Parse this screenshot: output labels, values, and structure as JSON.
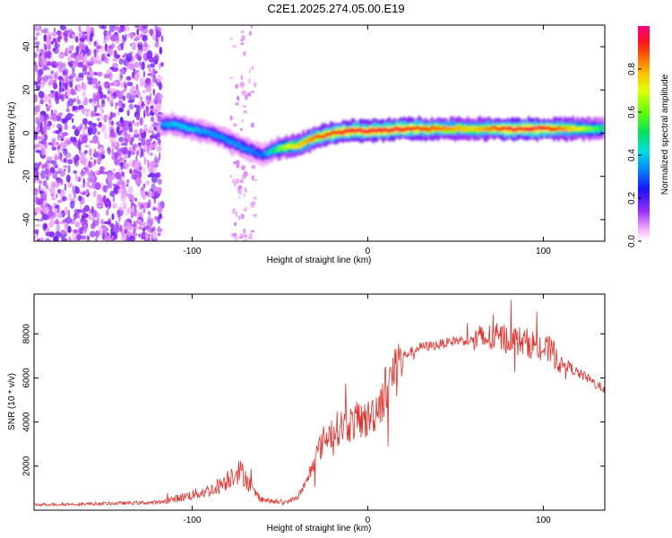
{
  "title": "C2E1.2025.274.05.00.E19",
  "chart_data": [
    {
      "type": "heatmap",
      "name": "spectrogram",
      "xlabel": "Height of straight line (km)",
      "ylabel": "Frequency (Hz)",
      "xlim": [
        -190,
        135
      ],
      "ylim": [
        -50,
        50
      ],
      "xticks": [
        -100,
        0,
        100
      ],
      "yticks": [
        -40,
        -20,
        0,
        20,
        40
      ],
      "colorbar": {
        "label": "Normalized spectral amplitude",
        "range": [
          0,
          1
        ],
        "ticks": [
          "0.0",
          "0.2",
          "0.4",
          "0.6",
          "0.8"
        ]
      },
      "ridge_x": [
        -117,
        -110,
        -100,
        -90,
        -80,
        -70,
        -60,
        -50,
        -45,
        -40,
        -30,
        -20,
        -10,
        0,
        20,
        40,
        60,
        80,
        100,
        110,
        135
      ],
      "ridge_freq": [
        4,
        4,
        2,
        0,
        -3,
        -7,
        -10,
        -7,
        -6,
        -6,
        -2,
        0,
        1,
        1,
        2,
        2,
        2,
        2,
        2,
        2,
        2
      ],
      "ridge_amplitude": [
        0.35,
        0.4,
        0.4,
        0.35,
        0.35,
        0.35,
        0.3,
        0.6,
        0.7,
        0.75,
        0.85,
        0.9,
        0.95,
        0.95,
        0.95,
        0.85,
        0.75,
        0.95,
        0.95,
        0.85,
        0.5
      ],
      "noise_region_x": [
        -190,
        -117
      ]
    },
    {
      "type": "line",
      "name": "snr",
      "xlabel": "Height of straight line (km)",
      "ylabel": "SNR (10 * v/v)",
      "xlim": [
        -190,
        135
      ],
      "ylim": [
        0,
        9800
      ],
      "xticks": [
        -100,
        0,
        100
      ],
      "yticks": [
        2000,
        4000,
        6000,
        8000
      ],
      "series": [
        {
          "name": "SNR",
          "color": "#e8302a",
          "x": [
            -190,
            -150,
            -120,
            -110,
            -100,
            -90,
            -85,
            -80,
            -75,
            -70,
            -65,
            -60,
            -55,
            -50,
            -45,
            -40,
            -35,
            -30,
            -25,
            -20,
            -15,
            -10,
            -5,
            0,
            5,
            10,
            15,
            20,
            30,
            40,
            50,
            60,
            70,
            80,
            90,
            95,
            100,
            105,
            110,
            115,
            120,
            125,
            130,
            135
          ],
          "y": [
            250,
            300,
            350,
            500,
            700,
            900,
            1100,
            1400,
            1800,
            1600,
            800,
            500,
            400,
            350,
            400,
            600,
            1200,
            2400,
            3200,
            3600,
            3800,
            3900,
            4100,
            4100,
            4600,
            5400,
            6300,
            7000,
            7400,
            7500,
            7700,
            7700,
            7800,
            7800,
            7600,
            7500,
            7300,
            7200,
            6700,
            6500,
            6200,
            6000,
            5700,
            5500
          ]
        }
      ]
    }
  ]
}
